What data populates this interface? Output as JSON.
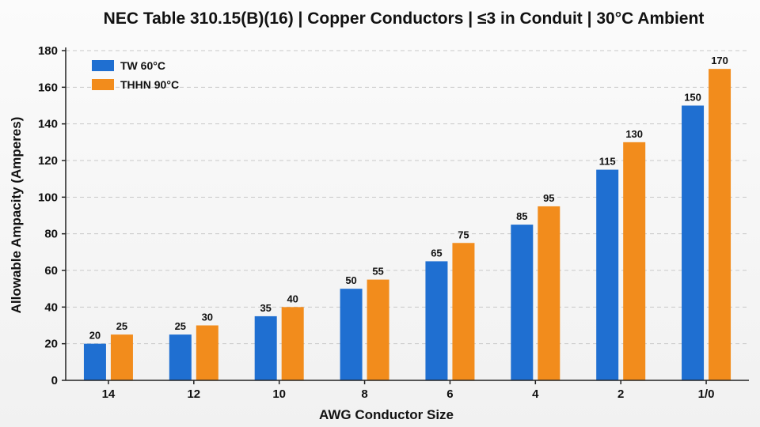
{
  "chart_data": {
    "type": "bar",
    "title": "NEC Table 310.15(B)(16) | Copper Conductors | ≤3 in Conduit | 30°C Ambient",
    "xlabel": "AWG Conductor Size",
    "ylabel": "Allowable Ampacity (Amperes)",
    "categories": [
      "14",
      "12",
      "10",
      "8",
      "6",
      "4",
      "2",
      "1/0"
    ],
    "series": [
      {
        "name": "TW 60°C",
        "color": "#1f6fd1",
        "values": [
          20,
          25,
          35,
          50,
          65,
          85,
          115,
          150
        ]
      },
      {
        "name": "THHN 90°C",
        "color": "#f28c1c",
        "values": [
          25,
          30,
          40,
          55,
          75,
          95,
          130,
          170
        ]
      }
    ],
    "ylim": [
      0,
      180
    ],
    "yticks": [
      0,
      20,
      40,
      60,
      80,
      100,
      120,
      140,
      160,
      180
    ],
    "grid": true,
    "legend_position": "top-left"
  }
}
